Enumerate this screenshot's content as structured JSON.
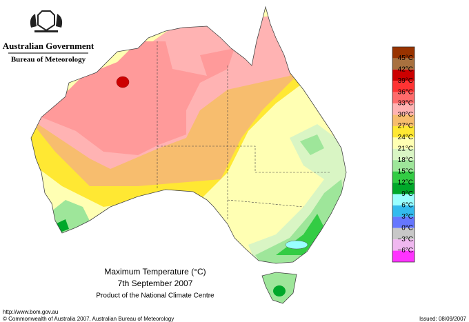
{
  "header": {
    "government": "Australian Government",
    "bureau": "Bureau of Meteorology"
  },
  "legend": {
    "labels": [
      "45°C",
      "42°C",
      "39°C",
      "36°C",
      "33°C",
      "30°C",
      "27°C",
      "24°C",
      "21°C",
      "18°C",
      "15°C",
      "12°C",
      "9°C",
      "6°C",
      "3°C",
      "0°C",
      "−3°C",
      "−6°C"
    ],
    "colors": [
      "#993300",
      "#a8713f",
      "#cc0000",
      "#ff3333",
      "#ff6b6b",
      "#ffb3b3",
      "#f7bd6e",
      "#ffe833",
      "#ffffb3",
      "#d9f5c4",
      "#9ee69a",
      "#33cc44",
      "#00a82a",
      "#99ffff",
      "#33bbee",
      "#6677ff",
      "#c8c8c8",
      "#f0b8f0",
      "#ff33ff"
    ]
  },
  "map_title": {
    "title": "Maximum Temperature (°C)",
    "date": "7th September 2007",
    "product": "Product of the National Climate Centre"
  },
  "footer": {
    "url": "http://www.bom.gov.au",
    "copyright": "© Commonwealth of Australia 2007, Australian Bureau of Meteorology",
    "issued": "Issued: 08/09/2007"
  }
}
